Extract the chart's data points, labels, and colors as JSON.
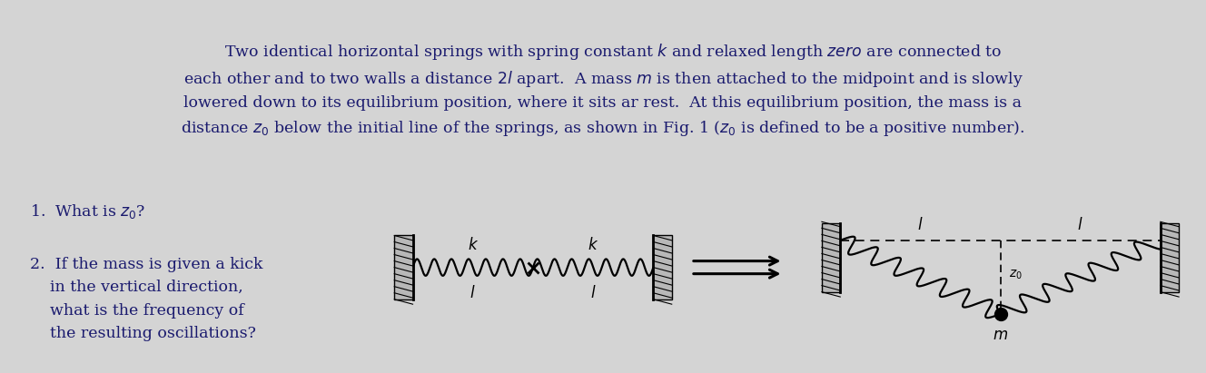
{
  "bg_color": "#d4d4d4",
  "panel_bg": "#ffffff",
  "text_color": "#1a1a6e",
  "wall_fill": "#b0b0b0",
  "spring_color": "#000000",
  "fig_width": 13.28,
  "fig_height": 4.11,
  "paragraph_lines": [
    "    Two identical horizontal springs with spring constant $k$ and relaxed length $\\it{zero}$ are connected to",
    "each other and to two walls a distance $2l$ apart.  A mass $m$ is then attached to the midpoint and is slowly",
    "lowered down to its equilibrium position, where it sits ar rest.  At this equilibrium position, the mass is a",
    "distance $z_0$ below the initial line of the springs, as shown in Fig. 1 ($z_0$ is defined to be a positive number)."
  ]
}
